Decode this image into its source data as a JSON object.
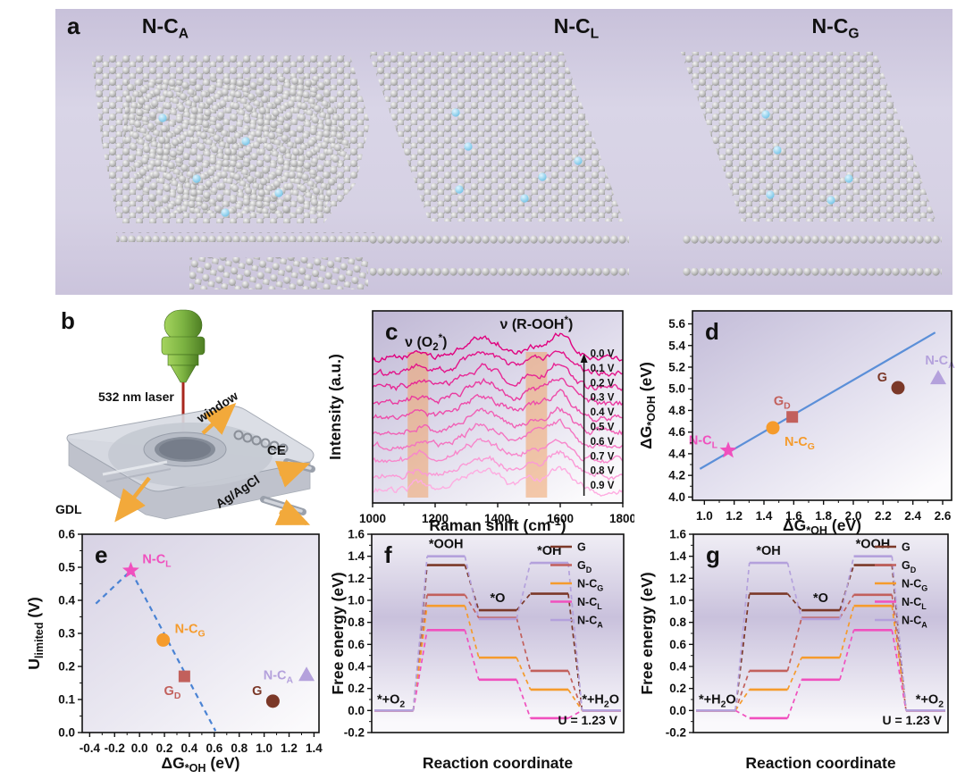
{
  "panel_a": {
    "label": "a",
    "structures": [
      {
        "title": [
          {
            "t": "N-C"
          },
          {
            "t": "A",
            "s": "sub"
          }
        ]
      },
      {
        "title": [
          {
            "t": "N-C"
          },
          {
            "t": "L",
            "s": "sub"
          }
        ]
      },
      {
        "title": [
          {
            "t": "N-C"
          },
          {
            "t": "G",
            "s": "sub"
          }
        ]
      }
    ],
    "atom_colors": {
      "carbon": "#b8b8b8",
      "nitrogen": "#7ec8e8"
    }
  },
  "panel_b": {
    "label": "b",
    "annotations": {
      "laser": "532 nm laser",
      "window": "window",
      "counter_electrode": "CE",
      "reference_electrode": "Ag/AgCl",
      "gas_diffusion_layer": "GDL"
    },
    "arrow_color": "#f2a93b",
    "laser_color": "#7cb342",
    "beam_color": "#a8271e"
  },
  "chart_data": [
    {
      "panel": "c",
      "panel_label": "c",
      "type": "line",
      "xlabel": [
        {
          "t": "Raman shift (cm"
        },
        {
          "t": "-1",
          "s": "sup"
        },
        {
          "t": ")"
        }
      ],
      "ylabel": [
        {
          "t": "Intensity (a.u.)"
        }
      ],
      "xlim": [
        1000,
        1800
      ],
      "x_ticks": [
        "1000",
        "1200",
        "1400",
        "1600",
        "1800"
      ],
      "highlight_bands": [
        {
          "x0": 1112,
          "x1": 1178,
          "color": "#f0a268",
          "label": [
            {
              "t": "ν (O"
            },
            {
              "t": "2",
              "s": "sub"
            },
            {
              "t": "*",
              "s": "sup"
            },
            {
              "t": ")"
            }
          ]
        },
        {
          "x0": 1490,
          "x1": 1558,
          "color": "#f0a268",
          "label": [
            {
              "t": "ν (R-OOH"
            },
            {
              "t": "*",
              "s": "sup"
            },
            {
              "t": ")"
            }
          ]
        }
      ],
      "curve_labels": [
        "0.0 V",
        "0.1 V",
        "0.2 V",
        "0.3 V",
        "0.4 V",
        "0.5 V",
        "0.6 V",
        "0.7 V",
        "0.8 V",
        "0.9 V"
      ],
      "curve_colors": [
        "#e0007e",
        "#e31389",
        "#e72694",
        "#ea399f",
        "#ee4caa",
        "#f160b5",
        "#f473c0",
        "#f886cb",
        "#fb99d6",
        "#feace1"
      ],
      "peak_positions_cm": [
        1150,
        1348,
        1515,
        1598
      ],
      "arrow_direction": "up"
    },
    {
      "panel": "d",
      "panel_label": "d",
      "type": "scatter",
      "xlabel": [
        {
          "t": "ΔG"
        },
        {
          "t": "*OH",
          "s": "sub"
        },
        {
          "t": " (eV)"
        }
      ],
      "ylabel": [
        {
          "t": "ΔG"
        },
        {
          "t": "*OOH",
          "s": "sub"
        },
        {
          "t": " (eV)"
        }
      ],
      "xlim": [
        0.92,
        2.66
      ],
      "ylim": [
        3.97,
        5.72
      ],
      "x_ticks": [
        "1.0",
        "1.2",
        "1.4",
        "1.6",
        "1.8",
        "2.0",
        "2.2",
        "2.4",
        "2.6"
      ],
      "y_ticks": [
        "4.0",
        "4.2",
        "4.4",
        "4.6",
        "4.8",
        "5.0",
        "5.2",
        "5.4",
        "5.6"
      ],
      "fit_line": {
        "x1": 0.97,
        "y1": 4.26,
        "x2": 2.55,
        "y2": 5.52,
        "color": "#5b8fd8"
      },
      "points": [
        {
          "name": [
            {
              "t": "N-C"
            },
            {
              "t": "L",
              "s": "sub"
            }
          ],
          "marker": "star",
          "color": "#f050be",
          "x": 1.16,
          "y": 4.43,
          "label_side": "left-up"
        },
        {
          "name": [
            {
              "t": "N-C"
            },
            {
              "t": "G",
              "s": "sub"
            }
          ],
          "marker": "circle",
          "color": "#f59b2c",
          "x": 1.46,
          "y": 4.64,
          "label_side": "right-down"
        },
        {
          "name": [
            {
              "t": "G"
            },
            {
              "t": "D",
              "s": "sub"
            }
          ],
          "marker": "square",
          "color": "#c2605c",
          "x": 1.59,
          "y": 4.74,
          "label_side": "up-left"
        },
        {
          "name": [
            {
              "t": "G"
            }
          ],
          "marker": "circle",
          "color": "#7b3828",
          "x": 2.3,
          "y": 5.01,
          "label_side": "left-up"
        },
        {
          "name": [
            {
              "t": "N-C"
            },
            {
              "t": "A",
              "s": "sub"
            }
          ],
          "marker": "triangle",
          "color": "#b4a1dc",
          "x": 2.57,
          "y": 5.1,
          "label_side": "up"
        }
      ]
    },
    {
      "panel": "e",
      "panel_label": "e",
      "type": "scatter",
      "xlabel": [
        {
          "t": "ΔG"
        },
        {
          "t": "*OH",
          "s": "sub"
        },
        {
          "t": " (eV)"
        }
      ],
      "ylabel": [
        {
          "t": "U"
        },
        {
          "t": "limited",
          "s": "sub"
        },
        {
          "t": " (V)"
        }
      ],
      "xlim": [
        -0.46,
        1.44
      ],
      "ylim": [
        0,
        0.6
      ],
      "x_ticks": [
        "-0.4",
        "-0.2",
        "0.0",
        "0.2",
        "0.4",
        "0.6",
        "0.8",
        "1.0",
        "1.2",
        "1.4"
      ],
      "y_ticks": [
        "0.0",
        "0.1",
        "0.2",
        "0.3",
        "0.4",
        "0.5",
        "0.6"
      ],
      "volcano_line": {
        "xs": [
          -0.35,
          -0.07,
          0.61
        ],
        "ys": [
          0.39,
          0.49,
          0.005
        ],
        "color": "#4a83d4",
        "dashed": true
      },
      "points": [
        {
          "name": [
            {
              "t": "N-C"
            },
            {
              "t": "L",
              "s": "sub"
            }
          ],
          "marker": "star",
          "color": "#f050be",
          "x": -0.07,
          "y": 0.49,
          "label_side": "right-up"
        },
        {
          "name": [
            {
              "t": "N-C"
            },
            {
              "t": "G",
              "s": "sub"
            }
          ],
          "marker": "circle",
          "color": "#f59b2c",
          "x": 0.19,
          "y": 0.28,
          "label_side": "right-up"
        },
        {
          "name": [
            {
              "t": "G"
            },
            {
              "t": "D",
              "s": "sub"
            }
          ],
          "marker": "square",
          "color": "#c2605c",
          "x": 0.36,
          "y": 0.17,
          "label_side": "down-left"
        },
        {
          "name": [
            {
              "t": "G"
            }
          ],
          "marker": "circle",
          "color": "#7b3828",
          "x": 1.07,
          "y": 0.095,
          "label_side": "left-up"
        },
        {
          "name": [
            {
              "t": "N-C"
            },
            {
              "t": "A",
              "s": "sub"
            }
          ],
          "marker": "triangle",
          "color": "#b4a1dc",
          "x": 1.34,
          "y": 0.175,
          "label_side": "left"
        }
      ]
    },
    {
      "panel": "f",
      "panel_label": "f",
      "type": "steps",
      "xlabel": [
        {
          "t": "Reaction coordinate"
        }
      ],
      "ylabel": [
        {
          "t": "Free energy (eV)"
        }
      ],
      "ylim": [
        -0.2,
        1.6
      ],
      "y_ticks": [
        "-0.2",
        "0.0",
        "0.2",
        "0.4",
        "0.6",
        "0.8",
        "1.0",
        "1.2",
        "1.4",
        "1.6"
      ],
      "states": [
        [
          {
            "t": "*+O"
          },
          {
            "t": "2",
            "s": "sub"
          }
        ],
        [
          {
            "t": "*OOH"
          }
        ],
        [
          {
            "t": "*O"
          }
        ],
        [
          {
            "t": "*OH"
          }
        ],
        [
          {
            "t": "*+H"
          },
          {
            "t": "2",
            "s": "sub"
          },
          {
            "t": "O"
          }
        ]
      ],
      "series": [
        {
          "name": [
            {
              "t": "G"
            }
          ],
          "color": "#7b3828",
          "values": [
            0,
            1.32,
            0.91,
            1.06,
            0
          ]
        },
        {
          "name": [
            {
              "t": "G"
            },
            {
              "t": "D",
              "s": "sub"
            }
          ],
          "color": "#c2605c",
          "values": [
            0,
            1.05,
            0.84,
            0.36,
            0
          ]
        },
        {
          "name": [
            {
              "t": "N-C"
            },
            {
              "t": "G",
              "s": "sub"
            }
          ],
          "color": "#f59b2c",
          "values": [
            0,
            0.95,
            0.48,
            0.19,
            0
          ]
        },
        {
          "name": [
            {
              "t": "N-C"
            },
            {
              "t": "L",
              "s": "sub"
            }
          ],
          "color": "#f050be",
          "values": [
            0,
            0.73,
            0.28,
            -0.07,
            0
          ]
        },
        {
          "name": [
            {
              "t": "N-C"
            },
            {
              "t": "A",
              "s": "sub"
            }
          ],
          "color": "#b4a1dc",
          "values": [
            0,
            1.4,
            0.83,
            1.34,
            0
          ]
        }
      ],
      "annotation": "U = 1.23 V"
    },
    {
      "panel": "g",
      "panel_label": "g",
      "type": "steps",
      "xlabel": [
        {
          "t": "Reaction coordinate"
        }
      ],
      "ylabel": [
        {
          "t": "Free energy (eV)"
        }
      ],
      "ylim": [
        -0.2,
        1.6
      ],
      "y_ticks": [
        "-0.2",
        "0.0",
        "0.2",
        "0.4",
        "0.6",
        "0.8",
        "1.0",
        "1.2",
        "1.4",
        "1.6"
      ],
      "states": [
        [
          {
            "t": "*+H"
          },
          {
            "t": "2",
            "s": "sub"
          },
          {
            "t": "O"
          }
        ],
        [
          {
            "t": "*OH"
          }
        ],
        [
          {
            "t": "*O"
          }
        ],
        [
          {
            "t": "*OOH"
          }
        ],
        [
          {
            "t": "*+O"
          },
          {
            "t": "2",
            "s": "sub"
          }
        ]
      ],
      "series": [
        {
          "name": [
            {
              "t": "G"
            }
          ],
          "color": "#7b3828",
          "values": [
            0,
            1.06,
            0.91,
            1.32,
            0
          ]
        },
        {
          "name": [
            {
              "t": "G"
            },
            {
              "t": "D",
              "s": "sub"
            }
          ],
          "color": "#c2605c",
          "values": [
            0,
            0.36,
            0.84,
            1.05,
            0
          ]
        },
        {
          "name": [
            {
              "t": "N-C"
            },
            {
              "t": "G",
              "s": "sub"
            }
          ],
          "color": "#f59b2c",
          "values": [
            0,
            0.19,
            0.48,
            0.95,
            0
          ]
        },
        {
          "name": [
            {
              "t": "N-C"
            },
            {
              "t": "L",
              "s": "sub"
            }
          ],
          "color": "#f050be",
          "values": [
            0,
            -0.07,
            0.28,
            0.73,
            0
          ]
        },
        {
          "name": [
            {
              "t": "N-C"
            },
            {
              "t": "A",
              "s": "sub"
            }
          ],
          "color": "#b4a1dc",
          "values": [
            0,
            1.34,
            0.83,
            1.4,
            0
          ]
        }
      ],
      "annotation": "U = 1.23 V"
    }
  ]
}
